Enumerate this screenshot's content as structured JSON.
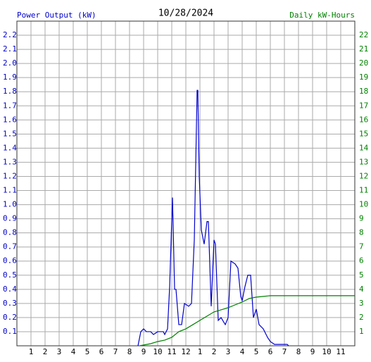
{
  "chart_data": {
    "type": "line",
    "title": "10/28/2024",
    "xlim": [
      0,
      24
    ],
    "xticks": [
      1,
      2,
      3,
      4,
      5,
      6,
      7,
      8,
      9,
      10,
      11,
      12,
      {
        "value": 13,
        "label": "1"
      },
      {
        "value": 14,
        "label": "2"
      },
      {
        "value": 15,
        "label": "3"
      },
      {
        "value": 16,
        "label": "4"
      },
      {
        "value": 17,
        "label": "5"
      },
      {
        "value": 18,
        "label": "6"
      },
      {
        "value": 19,
        "label": "7"
      },
      {
        "value": 20,
        "label": "8"
      },
      {
        "value": 21,
        "label": "9"
      },
      {
        "value": 22,
        "label": "10"
      },
      {
        "value": 23,
        "label": "11"
      }
    ],
    "ylim": [
      0,
      2.3
    ],
    "yticks": [
      0.1,
      0.2,
      0.3,
      0.4,
      0.5,
      0.6,
      0.7,
      0.8,
      0.9,
      {
        "value": 1,
        "label": "1.0"
      },
      1.1,
      1.2,
      1.3,
      1.4,
      1.5,
      1.6,
      1.7,
      1.8,
      1.9,
      {
        "value": 2,
        "label": "2.0"
      },
      2.1,
      2.2
    ],
    "y2lim": [
      0,
      23
    ],
    "y2ticks": [
      1,
      2,
      3,
      4,
      5,
      6,
      7,
      8,
      9,
      10,
      11,
      12,
      13,
      14,
      15,
      16,
      17,
      18,
      19,
      20,
      21,
      22
    ],
    "grid": true,
    "series": [
      {
        "name": "Power Output (kW)",
        "color": "#0000cc",
        "x": [
          8.6,
          8.8,
          9.0,
          9.2,
          9.5,
          9.7,
          10.0,
          10.4,
          10.5,
          10.7,
          10.85,
          11.05,
          11.2,
          11.3,
          11.5,
          11.7,
          11.9,
          12.2,
          12.4,
          12.6,
          12.8,
          12.85,
          12.95,
          13.1,
          13.3,
          13.5,
          13.6,
          13.8,
          14.0,
          14.1,
          14.3,
          14.5,
          14.8,
          15.0,
          15.2,
          15.5,
          15.7,
          15.9,
          16.0,
          16.2,
          16.4,
          16.6,
          16.8,
          17.0,
          17.2,
          17.5,
          17.8,
          18.0,
          18.3,
          19.0,
          19.2,
          19.3
        ],
        "values": [
          0,
          0.1,
          0.12,
          0.1,
          0.1,
          0.08,
          0.1,
          0.1,
          0.08,
          0.12,
          0.42,
          1.05,
          0.4,
          0.4,
          0.15,
          0.15,
          0.3,
          0.28,
          0.3,
          0.75,
          1.81,
          1.81,
          1.2,
          0.82,
          0.72,
          0.88,
          0.88,
          0.28,
          0.75,
          0.72,
          0.18,
          0.2,
          0.15,
          0.2,
          0.6,
          0.58,
          0.55,
          0.35,
          0.32,
          0.42,
          0.5,
          0.5,
          0.2,
          0.26,
          0.15,
          0.12,
          0.06,
          0.03,
          0.01,
          0.01,
          0.01,
          0
        ]
      },
      {
        "name": "Daily kW-Hours",
        "color": "#008000",
        "axis": "y2",
        "x": [
          8.7,
          9.5,
          10.0,
          10.5,
          11.0,
          11.5,
          12.0,
          12.5,
          13.0,
          13.5,
          14.0,
          14.5,
          15.0,
          15.5,
          16.0,
          16.5,
          17.0,
          17.5,
          18.0,
          19.0,
          24
        ],
        "values": [
          0,
          0.15,
          0.3,
          0.4,
          0.6,
          1.0,
          1.2,
          1.5,
          1.8,
          2.1,
          2.4,
          2.55,
          2.7,
          2.9,
          3.1,
          3.35,
          3.45,
          3.5,
          3.55,
          3.55,
          3.55
        ]
      }
    ]
  }
}
